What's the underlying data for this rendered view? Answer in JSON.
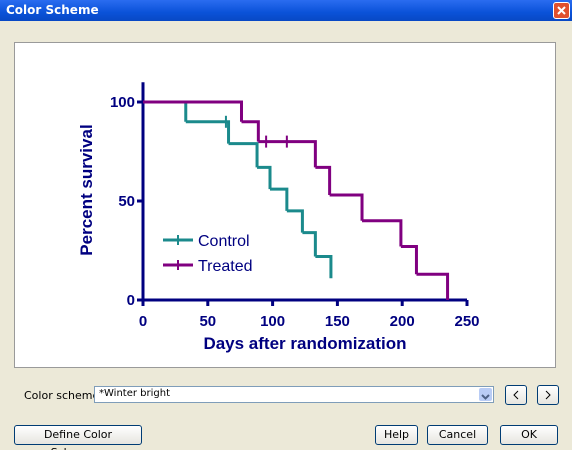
{
  "window": {
    "title": "Color Scheme"
  },
  "chart_data": {
    "type": "step",
    "xlabel": "Days after randomization",
    "ylabel": "Percent survival",
    "xlim": [
      0,
      250
    ],
    "ylim": [
      0,
      110
    ],
    "xticks": [
      0,
      50,
      100,
      150,
      200,
      250
    ],
    "yticks": [
      0,
      50,
      100
    ],
    "axis_color": "#000080",
    "series": [
      {
        "name": "Control",
        "color": "#1b8a8c",
        "x": [
          0,
          33,
          66,
          88,
          98,
          111,
          123,
          133,
          145
        ],
        "values": [
          100,
          90,
          79,
          67,
          56,
          45,
          34,
          22,
          11
        ],
        "censored_x": [
          64
        ],
        "censored_values": [
          90
        ]
      },
      {
        "name": "Treated",
        "color": "#800080",
        "x": [
          0,
          76,
          89,
          133,
          144,
          169,
          199,
          211,
          235
        ],
        "values": [
          100,
          90,
          80,
          67,
          53,
          40,
          27,
          13,
          0
        ],
        "censored_x": [
          95,
          111
        ],
        "censored_values": [
          80,
          80
        ]
      }
    ]
  },
  "controls": {
    "scheme_label": "Color scheme:",
    "scheme_value": "*Winter bright",
    "define_button": "Define Color Scheme...",
    "help_button": "Help",
    "cancel_button": "Cancel",
    "ok_button": "OK"
  }
}
